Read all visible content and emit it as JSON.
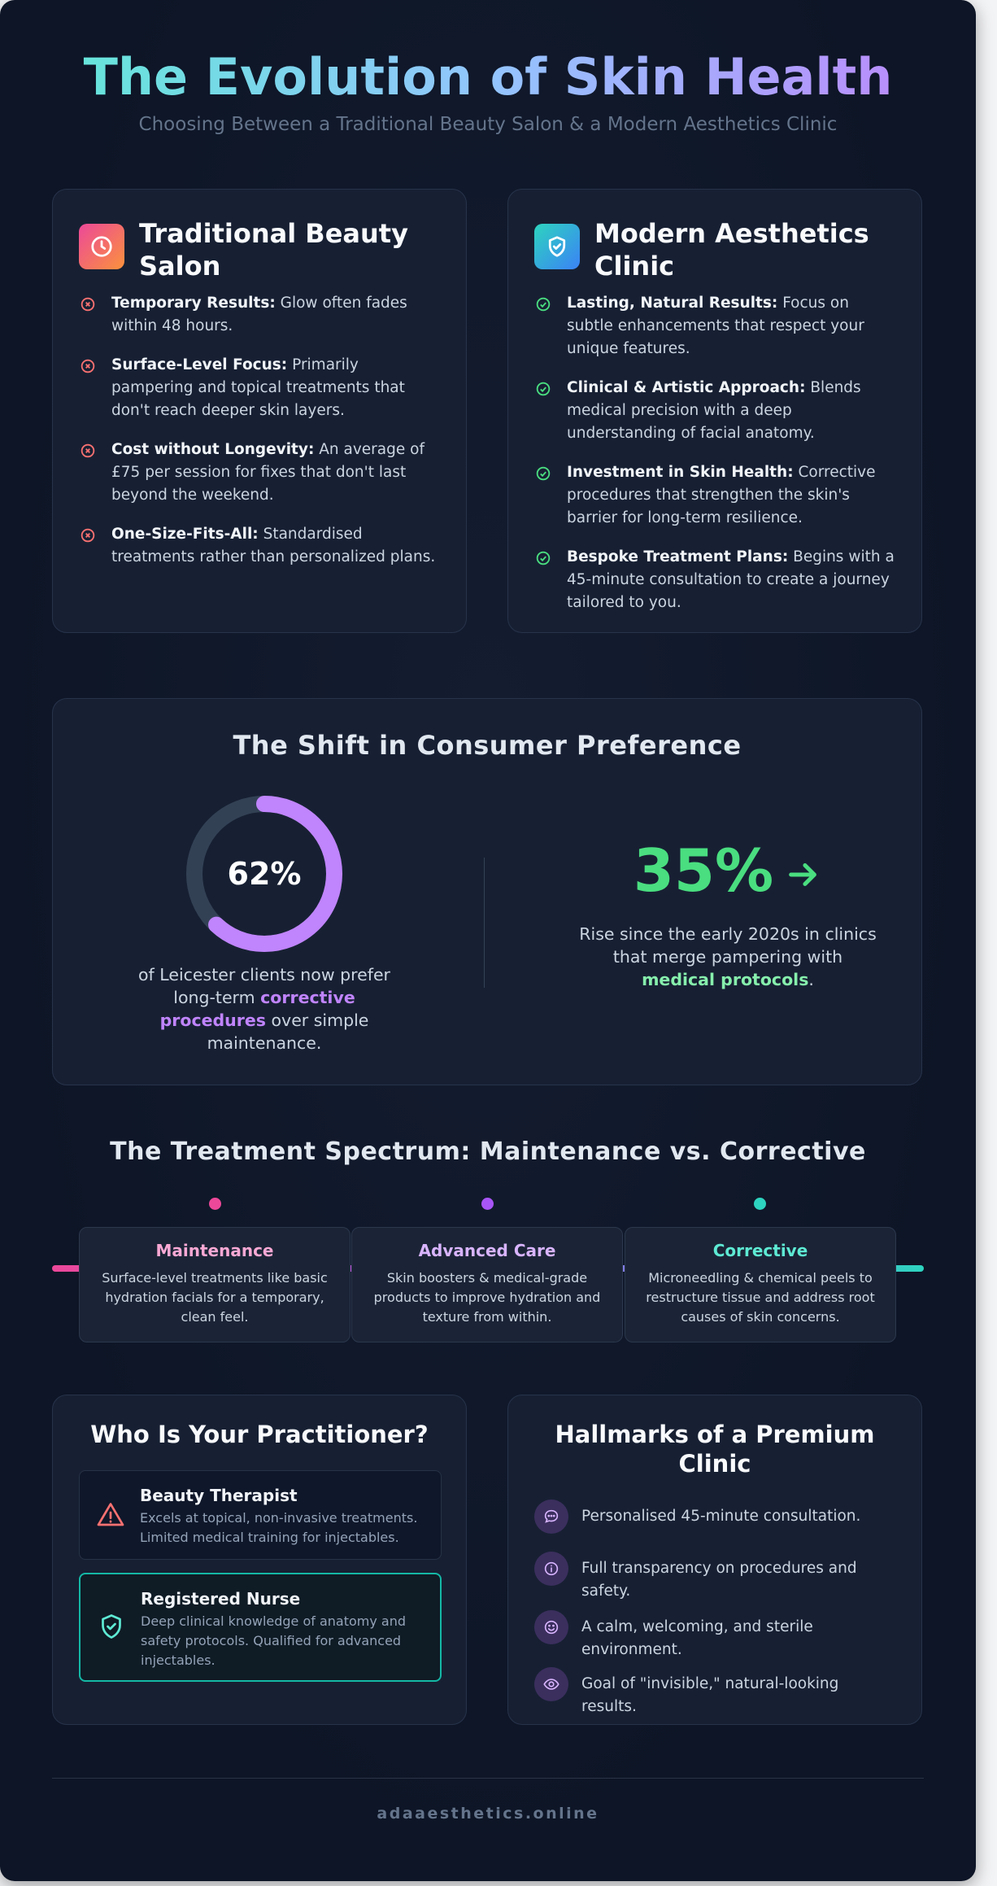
{
  "header": {
    "title": "The Evolution of Skin Health",
    "subtitle": "Choosing Between a Traditional Beauty Salon & a Modern Aesthetics Clinic"
  },
  "salon": {
    "title": "Traditional Beauty Salon",
    "icon": "clock-icon",
    "items": [
      {
        "label": "Temporary Results:",
        "text": "Glow often fades within 48 hours."
      },
      {
        "label": "Surface-Level Focus:",
        "text": "Primarily pampering and topical treatments that don't reach deeper skin layers."
      },
      {
        "label": "Cost without Longevity:",
        "text": "An average of £75 per session for fixes that don't last beyond the weekend."
      },
      {
        "label": "One-Size-Fits-All:",
        "text": "Standardised treatments rather than personalized plans."
      }
    ]
  },
  "clinic": {
    "title": "Modern Aesthetics Clinic",
    "icon": "shield-check-icon",
    "items": [
      {
        "label": "Lasting, Natural Results:",
        "text": "Focus on subtle enhancements that respect your unique features."
      },
      {
        "label": "Clinical & Artistic Approach:",
        "text": "Blends medical precision with a deep understanding of facial anatomy."
      },
      {
        "label": "Investment in Skin Health:",
        "text": "Corrective procedures that strengthen the skin's barrier for long-term resilience."
      },
      {
        "label": "Bespoke Treatment Plans:",
        "text": "Begins with a 45-minute consultation to create a journey tailored to you."
      }
    ]
  },
  "shift": {
    "title": "The Shift in Consumer Preference",
    "donut_label": "62%",
    "donut_value": 0.62,
    "donut_caption": {
      "pre": "of Leicester clients now prefer long-term ",
      "highlight": "corrective procedures",
      "post": " over simple maintenance."
    },
    "stat_value": "35%",
    "stat_caption": {
      "pre": "Rise since the early 2020s in clinics that merge pampering with ",
      "highlight": "medical protocols",
      "post": "."
    }
  },
  "spectrum": {
    "title": "The Treatment Spectrum: Maintenance vs. Corrective",
    "stages": [
      {
        "name": "Maintenance",
        "desc": "Surface-level treatments like basic hydration facials for a temporary, clean feel.",
        "color": "#f9a8d4",
        "dot": "#ec4899"
      },
      {
        "name": "Advanced Care",
        "desc": "Skin boosters & medical-grade products to improve hydration and texture from within.",
        "color": "#d8b4fe",
        "dot": "#a855f7"
      },
      {
        "name": "Corrective",
        "desc": "Microneedling & chemical peels to restructure tissue and address root causes of skin concerns.",
        "color": "#5eead4",
        "dot": "#2dd4bf"
      }
    ]
  },
  "practitioner": {
    "title": "Who Is Your Practitioner?",
    "roles": [
      {
        "name": "Beauty Therapist",
        "desc": "Excels at topical, non-invasive treatments. Limited medical training for injectables.",
        "icon": "warning-icon"
      },
      {
        "name": "Registered Nurse",
        "desc": "Deep clinical knowledge of anatomy and safety protocols. Qualified for advanced injectables.",
        "icon": "shield-check-icon"
      }
    ]
  },
  "hallmarks": {
    "title": "Hallmarks of a Premium Clinic",
    "items": [
      {
        "text": "Personalised 45-minute consultation.",
        "icon": "chat-icon"
      },
      {
        "text": "Full transparency on procedures and safety.",
        "icon": "info-icon"
      },
      {
        "text": "A calm, welcoming, and sterile environment.",
        "icon": "smile-icon"
      },
      {
        "text": "Goal of \"invisible,\" natural-looking results.",
        "icon": "eye-icon"
      }
    ]
  },
  "footer": {
    "domain": "adaaesthetics.online"
  }
}
